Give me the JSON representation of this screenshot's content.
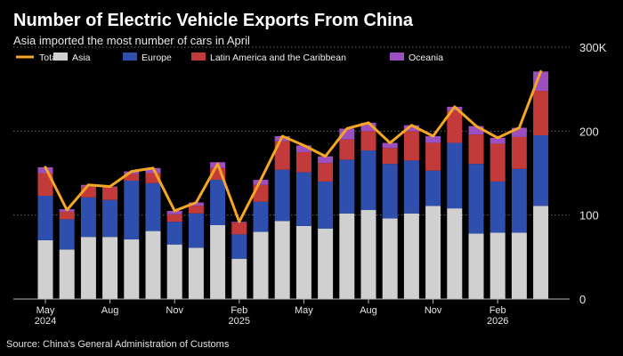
{
  "title": "Number of Electric Vehicle Exports From China",
  "subtitle": "Asia imported the most number of cars in April",
  "source": "Source: China's General Administration of Customs",
  "chart_data": {
    "type": "bar",
    "stacked": true,
    "categories": [
      "2024-05",
      "2024-06",
      "2024-07",
      "2024-08",
      "2024-09",
      "2024-10",
      "2024-11",
      "2024-12",
      "2025-01",
      "2025-02",
      "2025-03",
      "2025-04",
      "2025-05",
      "2025-06",
      "2025-07",
      "2025-08",
      "2025-09",
      "2025-10",
      "2025-11",
      "2025-12",
      "2026-01",
      "2026-02",
      "2026-03",
      "2026-04"
    ],
    "x_tick_labels": [
      {
        "index": 0,
        "lines": [
          "May",
          "2024"
        ]
      },
      {
        "index": 3,
        "lines": [
          "Aug"
        ]
      },
      {
        "index": 6,
        "lines": [
          "Nov"
        ]
      },
      {
        "index": 9,
        "lines": [
          "Feb",
          "2025"
        ]
      },
      {
        "index": 12,
        "lines": [
          "May"
        ]
      },
      {
        "index": 15,
        "lines": [
          "Aug"
        ]
      },
      {
        "index": 18,
        "lines": [
          "Nov"
        ]
      },
      {
        "index": 21,
        "lines": [
          "Feb",
          "2026"
        ]
      }
    ],
    "series": [
      {
        "name": "Asia",
        "color": "#d0d0d0",
        "values": [
          70,
          59,
          74,
          74,
          71,
          81,
          65,
          61,
          88,
          48,
          80,
          93,
          87,
          84,
          102,
          106,
          96,
          102,
          111,
          108,
          78,
          79,
          79,
          111
        ]
      },
      {
        "name": "Europe",
        "color": "#2e4fae",
        "values": [
          53,
          36,
          47,
          44,
          70,
          57,
          27,
          41,
          54,
          29,
          36,
          61,
          64,
          56,
          64,
          71,
          65,
          63,
          42,
          78,
          83,
          61,
          76,
          84
        ]
      },
      {
        "name": "Latin America and the Caribbean",
        "color": "#c33a3a",
        "values": [
          27,
          9,
          13,
          15,
          8,
          12,
          9,
          9,
          14,
          14,
          20,
          34,
          24,
          22,
          24,
          23,
          19,
          35,
          33,
          38,
          35,
          45,
          38,
          53
        ]
      },
      {
        "name": "Oceania",
        "color": "#9c4fbf",
        "values": [
          7,
          3,
          2,
          1,
          3,
          6,
          4,
          4,
          7,
          1,
          6,
          6,
          8,
          8,
          13,
          10,
          6,
          7,
          8,
          5,
          10,
          7,
          11,
          23
        ]
      }
    ],
    "line": {
      "name": "Total",
      "color": "#f5a623",
      "values": [
        157,
        106,
        136,
        134,
        152,
        156,
        105,
        115,
        161,
        92,
        142,
        194,
        183,
        170,
        203,
        210,
        186,
        207,
        194,
        229,
        206,
        192,
        204,
        271
      ]
    },
    "ylim": [
      0,
      300
    ],
    "y_ticks": [
      {
        "value": 0,
        "label": "0"
      },
      {
        "value": 100,
        "label": "100"
      },
      {
        "value": 200,
        "label": "200"
      },
      {
        "value": 300,
        "label": "300K"
      }
    ],
    "xlabel": "",
    "ylabel": "",
    "grid": true,
    "legend": {
      "position": "top-left",
      "entries": [
        {
          "name": "Total",
          "kind": "line",
          "color": "#f5a623"
        },
        {
          "name": "Asia",
          "kind": "box",
          "color": "#d0d0d0"
        },
        {
          "name": "Europe",
          "kind": "box",
          "color": "#2e4fae"
        },
        {
          "name": "Latin America and the Caribbean",
          "kind": "box",
          "color": "#c33a3a"
        },
        {
          "name": "Oceania",
          "kind": "box",
          "color": "#9c4fbf"
        }
      ]
    }
  }
}
